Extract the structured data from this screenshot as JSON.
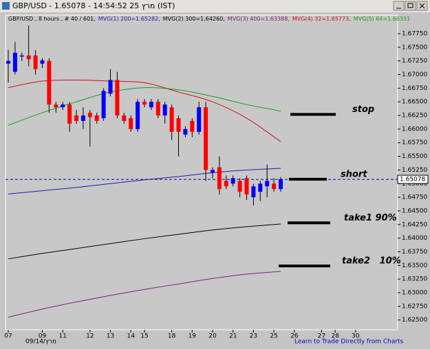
{
  "window": {
    "title": "GBP/USD - 1.65078 - 14:54:52  25 מרץ (IST)"
  },
  "chart_data": {
    "type": "candlestick",
    "subtitle": "GBP/USD , 8 hours , # 40 / 601,",
    "categories": [
      "07",
      null,
      null,
      null,
      null,
      "09",
      null,
      null,
      "11",
      null,
      null,
      null,
      "12",
      null,
      null,
      "13",
      null,
      null,
      "14",
      null,
      "15",
      null,
      null,
      null,
      "18",
      null,
      null,
      "19",
      null,
      null,
      "20",
      null,
      null,
      "21",
      null,
      null,
      "23",
      null,
      null,
      "25",
      null,
      null,
      "26",
      null,
      null,
      null,
      "27",
      null,
      "28",
      null,
      null,
      "30"
    ],
    "open": [
      1.672,
      1.6705,
      1.6733,
      1.6735,
      1.6735,
      1.672,
      1.6725,
      1.6645,
      1.664,
      1.6645,
      1.6625,
      1.6615,
      1.663,
      1.6625,
      1.662,
      1.6665,
      1.669,
      1.6625,
      1.662,
      1.66,
      1.665,
      1.664,
      1.665,
      1.6625,
      1.664,
      1.662,
      1.659,
      1.6615,
      1.6595,
      1.664,
      1.652,
      1.653,
      1.6505,
      1.65,
      1.6505,
      1.651,
      1.6475,
      1.6485,
      1.6495,
      1.65,
      1.649,
      null,
      null,
      null,
      null,
      null,
      null,
      null,
      null,
      null,
      null,
      null
    ],
    "high": [
      1.6745,
      1.676,
      1.674,
      1.679,
      1.6745,
      1.673,
      1.673,
      1.665,
      1.665,
      1.665,
      1.6635,
      1.664,
      1.6635,
      1.663,
      1.6675,
      1.671,
      1.6705,
      1.663,
      1.6625,
      1.6655,
      1.6655,
      1.6655,
      1.6655,
      1.665,
      1.6645,
      1.6625,
      1.6605,
      1.662,
      1.665,
      1.665,
      1.653,
      1.655,
      1.6515,
      1.6515,
      1.651,
      1.6515,
      1.65,
      1.6505,
      1.6535,
      1.651,
      1.6512,
      null,
      null,
      null,
      null,
      null,
      null,
      null,
      null,
      null,
      null,
      null
    ],
    "low": [
      1.6685,
      1.67,
      1.6725,
      1.6715,
      1.67,
      1.6712,
      1.663,
      1.663,
      1.6635,
      1.6595,
      1.661,
      1.66,
      1.6568,
      1.661,
      1.6615,
      1.666,
      1.662,
      1.661,
      1.6595,
      1.6595,
      1.664,
      1.6635,
      1.662,
      1.661,
      1.658,
      1.655,
      1.6585,
      1.6585,
      1.659,
      1.6505,
      1.651,
      1.648,
      1.649,
      1.6495,
      1.6475,
      1.647,
      1.646,
      1.6468,
      1.6475,
      1.6485,
      1.6485,
      null,
      null,
      null,
      null,
      null,
      null,
      null,
      null,
      null,
      null,
      null
    ],
    "close": [
      1.6725,
      1.674,
      1.6735,
      1.6728,
      1.671,
      1.6726,
      1.6645,
      1.664,
      1.6645,
      1.661,
      1.6615,
      1.6625,
      1.6622,
      1.6615,
      1.667,
      1.669,
      1.6625,
      1.6615,
      1.66,
      1.665,
      1.6645,
      1.665,
      1.6625,
      1.6645,
      1.6595,
      1.6595,
      1.66,
      1.6595,
      1.664,
      1.6525,
      1.6525,
      1.649,
      1.6495,
      1.651,
      1.6485,
      1.648,
      1.6495,
      1.65,
      1.6505,
      1.649,
      1.6508,
      null,
      null,
      null,
      null,
      null,
      null,
      null,
      null,
      null,
      null,
      null
    ],
    "up_color": "#0000ff",
    "down_color": "#ff0000",
    "series": [
      {
        "name": "MVG(1) 200=1.65282,",
        "color": "#1c1ca8",
        "x": [
          0,
          5,
          10,
          15,
          20,
          25,
          30,
          35,
          40
        ],
        "values": [
          1.6481,
          1.6487,
          1.6493,
          1.65,
          1.6507,
          1.6513,
          1.652,
          1.6525,
          1.6528
        ]
      },
      {
        "name": "MVG(2) 300=1.64260,",
        "color": "#000000",
        "x": [
          0,
          5,
          10,
          15,
          20,
          25,
          30,
          35,
          40
        ],
        "values": [
          1.6362,
          1.6372,
          1.6381,
          1.639,
          1.6399,
          1.6407,
          1.6415,
          1.6421,
          1.6426
        ]
      },
      {
        "name": "MVG(3) 400=1.63388,",
        "color": "#7a1f7a",
        "x": [
          0,
          5,
          10,
          15,
          20,
          25,
          30,
          35,
          40
        ],
        "values": [
          1.6255,
          1.627,
          1.6283,
          1.6295,
          1.6306,
          1.6316,
          1.6326,
          1.6334,
          1.6339
        ]
      },
      {
        "name": "MVG(4) 32=1.65773,",
        "color": "#d01010",
        "x": [
          0,
          5,
          10,
          15,
          20,
          25,
          30,
          35,
          40
        ],
        "values": [
          1.6676,
          1.6688,
          1.669,
          1.6688,
          1.6685,
          1.6668,
          1.665,
          1.662,
          1.6577
        ]
      },
      {
        "name": "MVG(5) 64=1.66331",
        "color": "#1a9a1a",
        "x": [
          0,
          5,
          10,
          15,
          20,
          25,
          30,
          35,
          40
        ],
        "values": [
          1.6607,
          1.663,
          1.665,
          1.6668,
          1.6676,
          1.6672,
          1.666,
          1.6645,
          1.6633
        ]
      }
    ],
    "last_price": 1.65078,
    "ylim": [
      1.6232,
      1.6809
    ],
    "yticks": [
      {
        "value": 1.625,
        "label": "1.62500"
      },
      {
        "value": 1.6275,
        "label": "1.62750"
      },
      {
        "value": 1.63,
        "label": "1.63000"
      },
      {
        "value": 1.6325,
        "label": "1.63250"
      },
      {
        "value": 1.635,
        "label": "1.63500"
      },
      {
        "value": 1.6375,
        "label": "1.63750"
      },
      {
        "value": 1.64,
        "label": "1.64000"
      },
      {
        "value": 1.6425,
        "label": "1.64250"
      },
      {
        "value": 1.645,
        "label": "1.64500"
      },
      {
        "value": 1.6475,
        "label": "1.64750"
      },
      {
        "value": 1.65,
        "label": "1.65000"
      },
      {
        "value": 1.6525,
        "label": "1.65250"
      },
      {
        "value": 1.655,
        "label": "1.65500"
      },
      {
        "value": 1.6575,
        "label": "1.65750"
      },
      {
        "value": 1.66,
        "label": "1.66000"
      },
      {
        "value": 1.6625,
        "label": "1.66250"
      },
      {
        "value": 1.665,
        "label": "1.66500"
      },
      {
        "value": 1.6675,
        "label": "1.66750"
      },
      {
        "value": 1.67,
        "label": "1.67000"
      },
      {
        "value": 1.6725,
        "label": "1.67250"
      },
      {
        "value": 1.675,
        "label": "1.67500"
      },
      {
        "value": 1.6775,
        "label": "1.67750"
      }
    ],
    "annotations": [
      {
        "text": "stop",
        "value": 1.6627
      },
      {
        "text": "short",
        "value": 1.6508
      },
      {
        "text": "take1 90%",
        "value": 1.6428
      },
      {
        "text": "take2   10%",
        "value": 1.6349
      }
    ],
    "date_label": "09/14/מרץ",
    "footer_link": "Learn to Trade Directly from Charts"
  }
}
